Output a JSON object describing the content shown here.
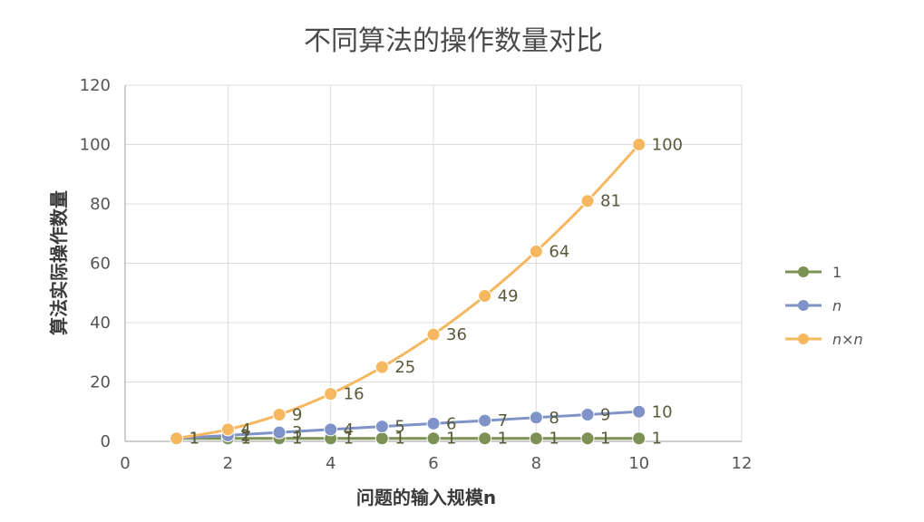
{
  "chart_data": {
    "type": "scatter",
    "title": "不同算法的操作数量对比",
    "xlabel": "问题的输入规模n",
    "ylabel": "算法实际操作数量",
    "xlim": [
      0,
      12
    ],
    "ylim": [
      0,
      120
    ],
    "x_ticks": [
      "0",
      "2",
      "4",
      "6",
      "8",
      "10",
      "12"
    ],
    "y_ticks": [
      "0",
      "20",
      "40",
      "60",
      "80",
      "100",
      "120"
    ],
    "grid": true,
    "legend_position": "right",
    "x": [
      1,
      2,
      3,
      4,
      5,
      6,
      7,
      8,
      9,
      10
    ],
    "series": [
      {
        "name": "1",
        "color": "#7d9155",
        "values": [
          1,
          1,
          1,
          1,
          1,
          1,
          1,
          1,
          1,
          1
        ],
        "data_labels": [
          "1",
          "1",
          "1",
          "1",
          "1",
          "1",
          "1",
          "1",
          "1",
          "1"
        ]
      },
      {
        "name": "n",
        "color": "#7f93c9",
        "values": [
          1,
          2,
          3,
          4,
          5,
          6,
          7,
          8,
          9,
          10
        ],
        "data_labels": [
          "1",
          "2",
          "3",
          "4",
          "5",
          "6",
          "7",
          "8",
          "9",
          "10"
        ]
      },
      {
        "name": "n×n",
        "color": "#f5b860",
        "values": [
          1,
          4,
          9,
          16,
          25,
          36,
          49,
          64,
          81,
          100
        ],
        "data_labels": [
          "1",
          "4",
          "9",
          "16",
          "25",
          "36",
          "49",
          "64",
          "81",
          "100"
        ]
      }
    ]
  }
}
